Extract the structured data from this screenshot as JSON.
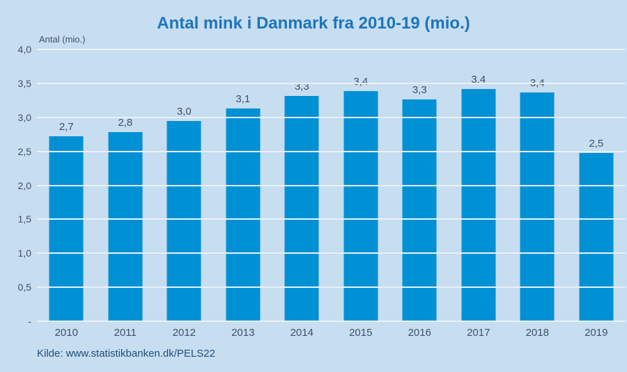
{
  "title": "Antal mink i Danmark fra 2010-19 (mio.)",
  "y_axis_title": "Antal (mio.)",
  "source": "Kilde: www.statistikbanken.dk/PELS22",
  "colors": {
    "background": "#C7DDF0",
    "bar": "#0091D5",
    "gridline": "#E9F1FA",
    "title": "#1B75BC",
    "text": "#3D5166",
    "source": "#1F4E79"
  },
  "chart_data": {
    "type": "bar",
    "title": "Antal mink i Danmark fra 2010-19 (mio.)",
    "xlabel": "",
    "ylabel": "Antal (mio.)",
    "categories": [
      "2010",
      "2011",
      "2012",
      "2013",
      "2014",
      "2015",
      "2016",
      "2017",
      "2018",
      "2019"
    ],
    "values": [
      2.7,
      2.8,
      3.0,
      3.1,
      3.3,
      3.4,
      3.3,
      3.4,
      3.4,
      2.5
    ],
    "value_labels": [
      "2,7",
      "2,8",
      "3,0",
      "3,1",
      "3,3",
      "3,4",
      "3,3",
      "3,4",
      "3,4",
      "2,5"
    ],
    "values_precise": [
      2.72,
      2.78,
      2.95,
      3.13,
      3.31,
      3.39,
      3.26,
      3.42,
      3.37,
      2.48
    ],
    "ylim": [
      0,
      4.0
    ],
    "y_ticks": [
      "4,0",
      "3,5",
      "3,0",
      "2,5",
      "2,0",
      "1,5",
      "1,0",
      "0,5",
      "-"
    ],
    "grid": true,
    "legend": false,
    "source": "Kilde: www.statistikbanken.dk/PELS22"
  }
}
